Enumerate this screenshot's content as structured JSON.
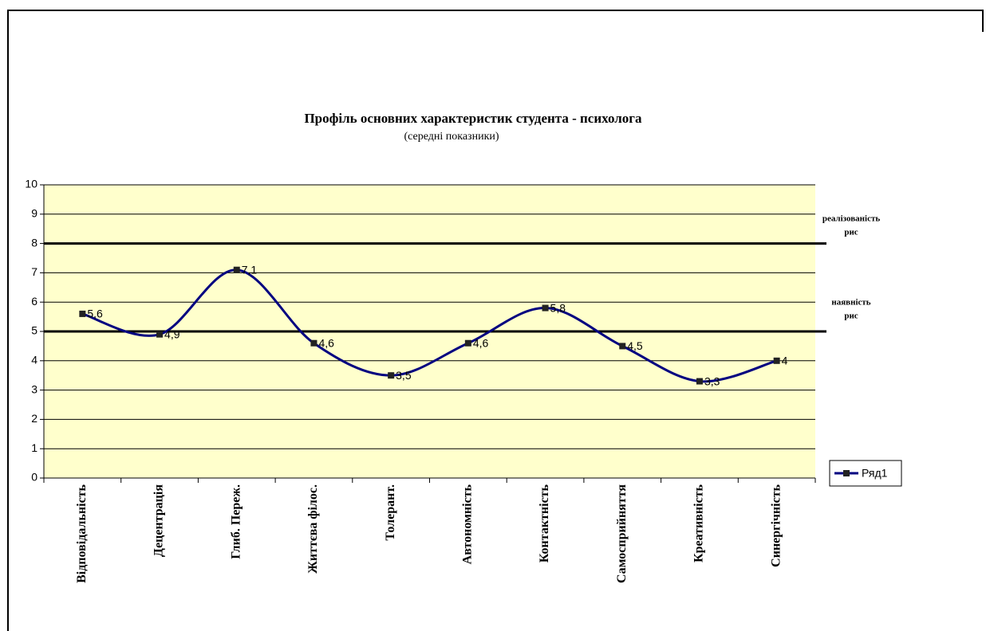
{
  "chart_data": {
    "type": "line",
    "title": "Профіль основних характеристик  студента - психолога",
    "subtitle": "(середні показники)",
    "categories": [
      "Відповідальність",
      "Децентрація",
      "Глиб. Переж.",
      "Життєва філос.",
      "Толерант.",
      "Автономність",
      "Контактність",
      "Самосприйняття",
      "Креативність",
      "Синергічність"
    ],
    "series": [
      {
        "name": "Ряд1",
        "color": "#000080",
        "values": [
          5.6,
          4.9,
          7.1,
          4.6,
          3.5,
          4.6,
          5.8,
          4.5,
          3.3,
          4
        ],
        "value_labels": [
          "5,6",
          "4,9",
          "7,1",
          "4,6",
          "3,5",
          "4,6",
          "5,8",
          "4,5",
          "3,3",
          "4"
        ]
      }
    ],
    "ylim": [
      0,
      10
    ],
    "yticks": [
      0,
      1,
      2,
      3,
      4,
      5,
      6,
      7,
      8,
      9,
      10
    ],
    "grid": true,
    "reference_lines": [
      8,
      5
    ],
    "annotations": [
      [
        "реалізованість",
        "рис"
      ],
      [
        "наявність",
        "рис"
      ]
    ],
    "plot_background": "#ffffcc",
    "legend": "right",
    "smooth": true
  }
}
